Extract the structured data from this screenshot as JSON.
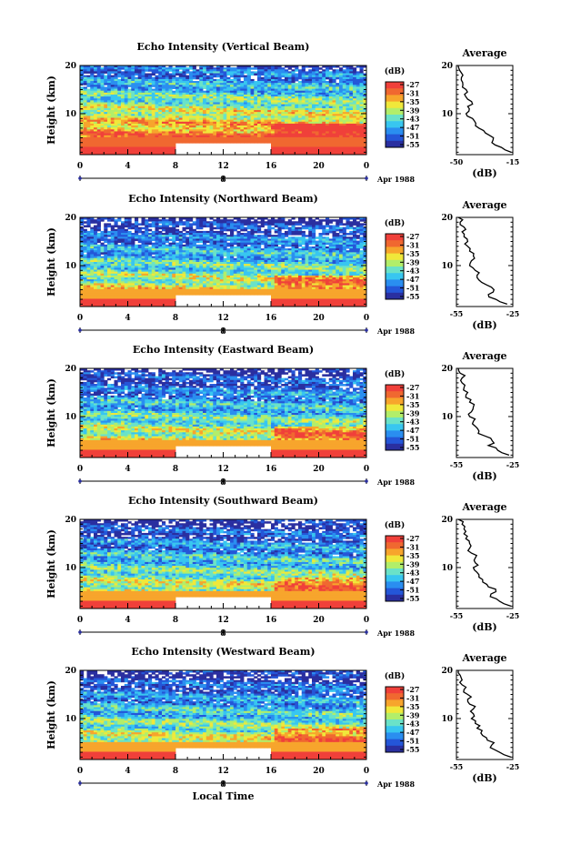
{
  "colors": {
    "scale": [
      "#2a2fa0",
      "#2456d8",
      "#2a8ef0",
      "#38c6f0",
      "#6ae2c8",
      "#b2ee6a",
      "#f0e83a",
      "#f7a52c",
      "#f06830",
      "#f0403a"
    ],
    "axis": "#000000",
    "masked": "#ffffff",
    "profile_line": "#000000"
  },
  "common": {
    "colorbar_label": "(dB)",
    "colorbar_ticks": [
      "-27",
      "-31",
      "-35",
      "-39",
      "-43",
      "-47",
      "-51",
      "-55"
    ],
    "ylabel": "Height (km)",
    "ytick_labels": [
      "20",
      "10"
    ],
    "xtick_labels": [
      "0",
      "4",
      "8",
      "12",
      "16",
      "20",
      "0"
    ],
    "date_tick": "8",
    "date_text": "Apr 1988",
    "profile_title": "Average",
    "profile_xlabel": "(dB)",
    "profile_ytick_labels": [
      "20",
      "10"
    ],
    "xlabel": "Local Time"
  },
  "chart_data": [
    {
      "type": "heatmap",
      "title": "Echo Intensity (Vertical Beam)",
      "xlabel": "Local Time",
      "ylabel": "Height (km)",
      "x_range_hours": [
        0,
        24
      ],
      "y_range_km": [
        1.5,
        20
      ],
      "color_range_db": [
        -55,
        -27
      ],
      "masked_interval_hours": [
        8,
        16
      ],
      "masked_below_km": 4,
      "profile": {
        "title": "Average",
        "xlabel": "(dB)",
        "xlim": [
          -50,
          -15
        ],
        "xtick_labels": [
          "-50",
          "-15"
        ],
        "height_km": [
          2,
          3,
          4,
          5,
          6,
          7,
          8,
          9,
          10,
          11,
          12,
          13,
          14,
          15,
          16,
          17,
          18,
          19,
          20
        ],
        "value_db": [
          -16,
          -22,
          -28,
          -27,
          -32,
          -36,
          -38,
          -40,
          -44,
          -42,
          -40,
          -43,
          -45,
          -44,
          -46,
          -47,
          -46,
          -48,
          -49
        ]
      }
    },
    {
      "type": "heatmap",
      "title": "Echo Intensity (Northward Beam)",
      "xlabel": "Local Time",
      "ylabel": "Height (km)",
      "x_range_hours": [
        0,
        24
      ],
      "y_range_km": [
        1.5,
        20
      ],
      "color_range_db": [
        -55,
        -27
      ],
      "masked_interval_hours": [
        8,
        16
      ],
      "masked_below_km": 4,
      "profile": {
        "title": "Average",
        "xlabel": "(dB)",
        "xlim": [
          -55,
          -25
        ],
        "xtick_labels": [
          "-55",
          "-25"
        ],
        "height_km": [
          2,
          3,
          4,
          5,
          6,
          7,
          8,
          9,
          10,
          11,
          12,
          13,
          14,
          15,
          16,
          17,
          18,
          19,
          20
        ],
        "value_db": [
          -28,
          -34,
          -38,
          -35,
          -39,
          -43,
          -44,
          -45,
          -48,
          -47,
          -46,
          -48,
          -49,
          -49,
          -51,
          -52,
          -51,
          -53,
          -54
        ]
      }
    },
    {
      "type": "heatmap",
      "title": "Echo Intensity (Eastward Beam)",
      "xlabel": "Local Time",
      "ylabel": "Height (km)",
      "x_range_hours": [
        0,
        24
      ],
      "y_range_km": [
        1.5,
        20
      ],
      "color_range_db": [
        -55,
        -27
      ],
      "masked_interval_hours": [
        8,
        16
      ],
      "masked_below_km": 4,
      "profile": {
        "title": "Average",
        "xlabel": "(dB)",
        "xlim": [
          -55,
          -25
        ],
        "xtick_labels": [
          "-55",
          "-25"
        ],
        "height_km": [
          2,
          3,
          4,
          5,
          6,
          7,
          8,
          9,
          10,
          11,
          12,
          13,
          14,
          15,
          16,
          17,
          18,
          19,
          20
        ],
        "value_db": [
          -27,
          -33,
          -38,
          -36,
          -40,
          -43,
          -45,
          -46,
          -48,
          -47,
          -46,
          -48,
          -50,
          -49,
          -51,
          -52,
          -52,
          -53,
          -54
        ]
      }
    },
    {
      "type": "heatmap",
      "title": "Echo Intensity (Southward Beam)",
      "xlabel": "Local Time",
      "ylabel": "Height (km)",
      "x_range_hours": [
        0,
        24
      ],
      "y_range_km": [
        1.5,
        20
      ],
      "color_range_db": [
        -55,
        -27
      ],
      "masked_interval_hours": [
        8,
        16
      ],
      "masked_below_km": 4,
      "profile": {
        "title": "Average",
        "xlabel": "(dB)",
        "xlim": [
          -55,
          -25
        ],
        "xtick_labels": [
          "-55",
          "-25"
        ],
        "height_km": [
          2,
          3,
          4,
          5,
          6,
          7,
          8,
          9,
          10,
          11,
          12,
          13,
          14,
          15,
          16,
          17,
          18,
          19,
          20
        ],
        "value_db": [
          -26,
          -32,
          -37,
          -34,
          -38,
          -41,
          -43,
          -44,
          -46,
          -45,
          -45,
          -47,
          -48,
          -48,
          -50,
          -51,
          -51,
          -52,
          -54
        ]
      }
    },
    {
      "type": "heatmap",
      "title": "Echo Intensity (Westward Beam)",
      "xlabel": "Local Time",
      "ylabel": "Height (km)",
      "x_range_hours": [
        0,
        24
      ],
      "y_range_km": [
        1.5,
        20
      ],
      "color_range_db": [
        -55,
        -27
      ],
      "masked_interval_hours": [
        8,
        16
      ],
      "masked_below_km": 4,
      "profile": {
        "title": "Average",
        "xlabel": "(dB)",
        "xlim": [
          -55,
          -25
        ],
        "xtick_labels": [
          "-55",
          "-25"
        ],
        "height_km": [
          2,
          3,
          4,
          5,
          6,
          7,
          8,
          9,
          10,
          11,
          12,
          13,
          14,
          15,
          16,
          17,
          18,
          19,
          20
        ],
        "value_db": [
          -26,
          -32,
          -37,
          -35,
          -39,
          -42,
          -44,
          -45,
          -47,
          -46,
          -46,
          -48,
          -49,
          -49,
          -51,
          -52,
          -52,
          -53,
          -54
        ]
      }
    }
  ]
}
